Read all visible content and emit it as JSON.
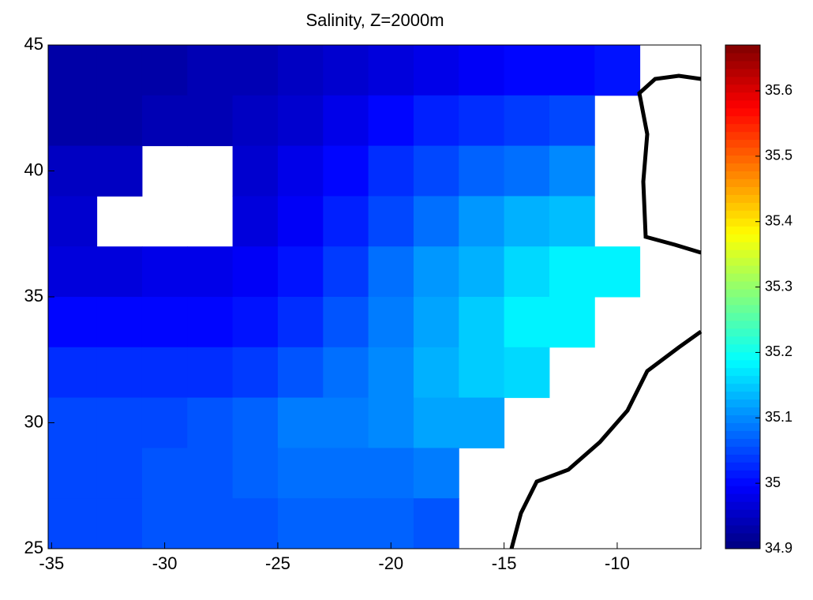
{
  "chart_data": {
    "type": "heatmap",
    "title": "Salinity, Z=2000m",
    "colormap": "jet",
    "x": [
      -34,
      -32,
      -30,
      -28,
      -26,
      -24,
      -22,
      -20,
      -18,
      -16,
      -14,
      -12,
      -10,
      -8
    ],
    "y": [
      44,
      42,
      40,
      38,
      36,
      34,
      32,
      30,
      28,
      26
    ],
    "z": [
      [
        34.93,
        34.93,
        34.93,
        34.94,
        34.94,
        34.95,
        34.96,
        34.97,
        34.98,
        34.99,
        35.0,
        35.0,
        35.01,
        null
      ],
      [
        34.93,
        34.93,
        34.94,
        34.94,
        34.95,
        34.96,
        34.98,
        35.0,
        35.02,
        35.03,
        35.04,
        35.05,
        null,
        null
      ],
      [
        34.95,
        34.95,
        null,
        null,
        34.96,
        34.98,
        35.0,
        35.03,
        35.05,
        35.07,
        35.08,
        35.1,
        null,
        null
      ],
      [
        34.96,
        null,
        null,
        null,
        34.97,
        34.99,
        35.02,
        35.05,
        35.08,
        35.11,
        35.13,
        35.14,
        null,
        null
      ],
      [
        34.97,
        34.97,
        34.98,
        34.98,
        34.99,
        35.01,
        35.04,
        35.08,
        35.11,
        35.13,
        35.16,
        35.18,
        35.18,
        null
      ],
      [
        35.0,
        35.0,
        35.0,
        35.0,
        35.01,
        35.03,
        35.06,
        35.09,
        35.12,
        35.15,
        35.18,
        35.18,
        null,
        null
      ],
      [
        35.03,
        35.03,
        35.03,
        35.03,
        35.04,
        35.06,
        35.08,
        35.1,
        35.13,
        35.15,
        35.16,
        null,
        null,
        null
      ],
      [
        35.05,
        35.05,
        35.05,
        35.06,
        35.07,
        35.09,
        35.09,
        35.1,
        35.12,
        35.12,
        null,
        null,
        null,
        null
      ],
      [
        35.05,
        35.05,
        35.06,
        35.06,
        35.07,
        35.08,
        35.08,
        35.08,
        35.09,
        null,
        null,
        null,
        null,
        null
      ],
      [
        35.05,
        35.05,
        35.06,
        35.06,
        35.06,
        35.07,
        35.07,
        35.07,
        35.06,
        null,
        null,
        null,
        null,
        null
      ]
    ],
    "xlim": [
      -35.15,
      -6.3
    ],
    "ylim": [
      25,
      45
    ],
    "xticks": [
      -35,
      -30,
      -25,
      -20,
      -15,
      -10
    ],
    "yticks": [
      25,
      30,
      35,
      40,
      45
    ],
    "clim": [
      34.9,
      35.67
    ],
    "cticks": [
      34.9,
      35,
      35.1,
      35.2,
      35.3,
      35.4,
      35.5,
      35.6
    ]
  }
}
